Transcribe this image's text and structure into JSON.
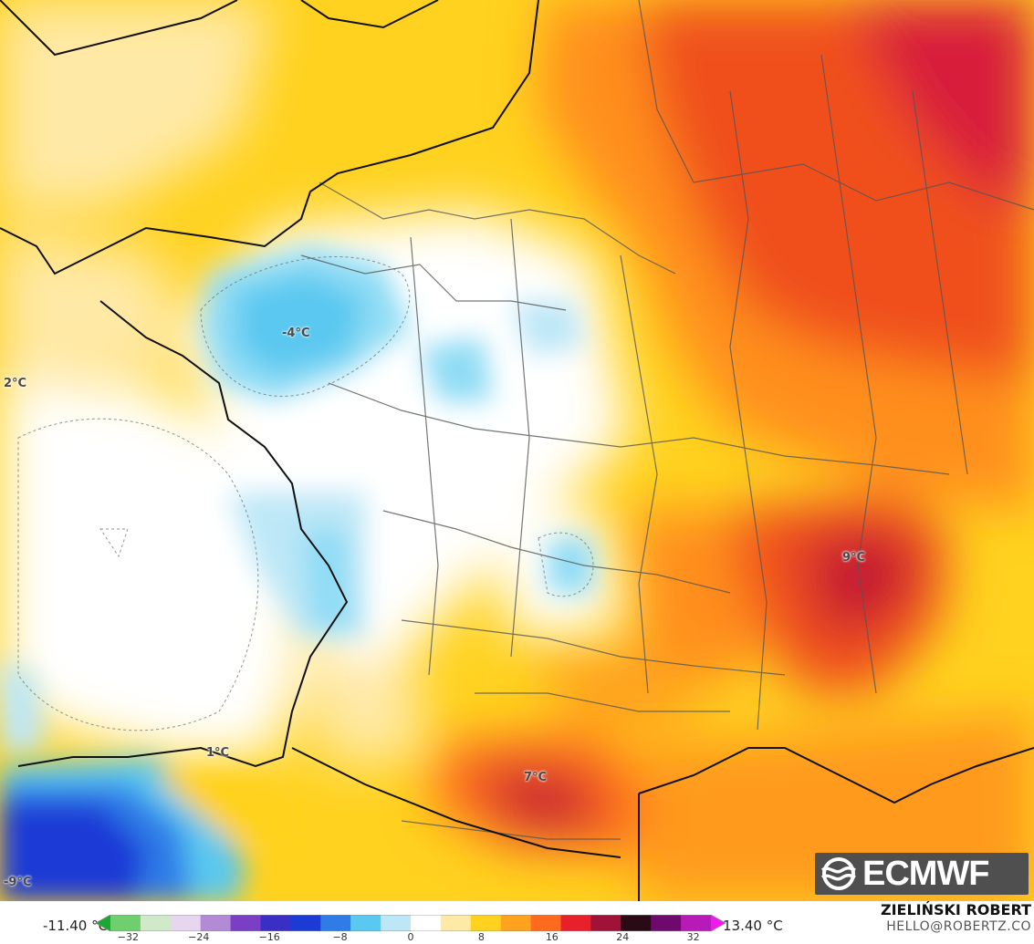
{
  "map": {
    "labels": {
      "paris_region": "-4°C",
      "west_coast": "2°C",
      "southwest": "1°C",
      "iberia": "-9°C",
      "pyrenees_east": "7°C",
      "alps": "9°C"
    }
  },
  "brand": {
    "logo_text": "ECMWF"
  },
  "colorbar": {
    "min_label": "-11.40 °C",
    "max_label": "13.40 °C",
    "ticks": [
      "−32",
      "−24",
      "−16",
      "−8",
      "0",
      "8",
      "16",
      "24",
      "32"
    ],
    "tick_values": [
      -32,
      -24,
      -16,
      -8,
      0,
      8,
      16,
      24,
      32
    ],
    "range": [
      -34,
      34
    ],
    "colors": [
      "#19a832",
      "#6fcf6f",
      "#cfe9c9",
      "#e6d6ee",
      "#b38ad6",
      "#7a3fc4",
      "#3a2fc4",
      "#1c3bd6",
      "#2f7be8",
      "#5ac8f0",
      "#bde7f7",
      "#ffffff",
      "#ffe9a6",
      "#ffd21f",
      "#ffa21f",
      "#ff6a1f",
      "#e8202a",
      "#a01238",
      "#2a0a14",
      "#6e0a6e",
      "#b81ab8",
      "#f01af0"
    ]
  },
  "author": {
    "name": "ZIELIŃSKI ROBERT",
    "email": "HELLO@ROBERTZ.CO"
  }
}
